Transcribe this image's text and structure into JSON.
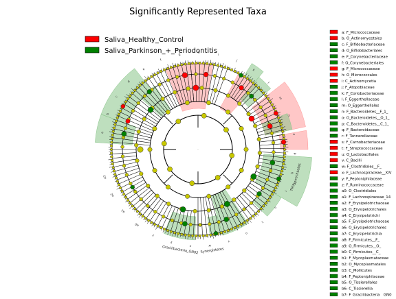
{
  "title": "Significantly Represented Taxa",
  "colors": {
    "healthy": "#ff0000",
    "parkinson": "#008000",
    "node_neutral": "#c8c800",
    "healthy_fill": "#ff9999",
    "parkinson_fill": "#88c488",
    "edge": "#000000"
  },
  "main_legend": [
    {
      "label": "Saliva_Healthy_Control",
      "color": "#ff0000"
    },
    {
      "label": "Saliva_Parkinson_+_Periodontitis",
      "color": "#008000"
    }
  ],
  "taxa_legend": [
    {
      "label": "a: F_Micrococcaceae",
      "color": "#ff0000"
    },
    {
      "label": "b: O_Actinomycetales",
      "color": "#ff0000"
    },
    {
      "label": "c: F_Bifidobacteriaceae",
      "color": "#008000"
    },
    {
      "label": "d: O_Bifidobacteriales",
      "color": "#008000"
    },
    {
      "label": "e: F_Corynebacteriaceae",
      "color": "#008000"
    },
    {
      "label": "f: O_Corynebacteriales",
      "color": "#008000"
    },
    {
      "label": "g: F_Micrococcaceae",
      "color": "#ff0000"
    },
    {
      "label": "h: O_Micrococcales",
      "color": "#ff0000"
    },
    {
      "label": "i: C_Actinomycetia",
      "color": "#ff0000"
    },
    {
      "label": "j: F_Atopobiaceae",
      "color": "#008000"
    },
    {
      "label": "k: F_Coriobacteriaceae",
      "color": "#008000"
    },
    {
      "label": "l: F_Eggerthellaceae",
      "color": "#008000"
    },
    {
      "label": "m: O_Eggerthellales",
      "color": "#008000"
    },
    {
      "label": "n: F_Bacteroidetes__F_1_",
      "color": "#008000"
    },
    {
      "label": "o: O_Bacteroidetes__O_1_",
      "color": "#008000"
    },
    {
      "label": "p: C_Bacteroidetes__C_1_",
      "color": "#008000"
    },
    {
      "label": "q: F_Bacteroidaceae",
      "color": "#008000"
    },
    {
      "label": "r: F_Tannerellaceae",
      "color": "#008000"
    },
    {
      "label": "s: F_Carnobacteriaceae",
      "color": "#ff0000"
    },
    {
      "label": "t: F_Streptococcaceae",
      "color": "#ff0000"
    },
    {
      "label": "u: O_Lactobacillales",
      "color": "#ff0000"
    },
    {
      "label": "v: C_Bacilli",
      "color": "#ff0000"
    },
    {
      "label": "w: F_Clostridiales__F_",
      "color": "#008000"
    },
    {
      "label": "x: F_Lachnospiraceae__XIV",
      "color": "#ff0000"
    },
    {
      "label": "y: F_Peptoniphilaceae",
      "color": "#008000"
    },
    {
      "label": "z: F_Ruminococcaceae",
      "color": "#008000"
    },
    {
      "label": "a0: O_Clostridiales",
      "color": "#008000"
    },
    {
      "label": "a1: F_Lachnospiraceae_14",
      "color": "#008000"
    },
    {
      "label": "a2: F_Erysipelotrichaceae",
      "color": "#008000"
    },
    {
      "label": "a3: O_Erysipelotrichales",
      "color": "#008000"
    },
    {
      "label": "a4: C_Erysipelotrichi",
      "color": "#008000"
    },
    {
      "label": "a5: F_Erysipelotrichaceae",
      "color": "#008000"
    },
    {
      "label": "a6: O_Erysipelotrichales",
      "color": "#008000"
    },
    {
      "label": "a7: C_Erysipelotrichia",
      "color": "#008000"
    },
    {
      "label": "a8: F_Firmicutes__F_",
      "color": "#008000"
    },
    {
      "label": "a9: O_Firmicutes__O_",
      "color": "#008000"
    },
    {
      "label": "b0: C_Firmicutes__C_",
      "color": "#008000"
    },
    {
      "label": "b1: F_Mycoplasmataceae",
      "color": "#008000"
    },
    {
      "label": "b2: O_Mycoplasmatales",
      "color": "#008000"
    },
    {
      "label": "b3: C_Mollicutes",
      "color": "#008000"
    },
    {
      "label": "b4: F_Peptoniphilaceae",
      "color": "#008000"
    },
    {
      "label": "b5: O_Tissierellales",
      "color": "#008000"
    },
    {
      "label": "b6: C_Tissierellia",
      "color": "#008000"
    },
    {
      "label": "b7: F_Gracilibacteria__GN0",
      "color": "#008000"
    }
  ],
  "outer_labels": [
    {
      "text": "Gracilibacteria_GN02",
      "angle": 100
    },
    {
      "text": "Synergistetes",
      "angle": 82
    },
    {
      "text": "Spirochaetes",
      "angle": 14
    },
    {
      "text": "TM7",
      "angle": 22
    }
  ],
  "sectors": [
    {
      "clade": "healthy",
      "from": -112,
      "to": -80,
      "r0": 60,
      "r1": 126
    },
    {
      "clade": "healthy",
      "from": -62,
      "to": -48,
      "r0": 68,
      "r1": 126
    },
    {
      "clade": "healthy",
      "from": -38,
      "to": -12,
      "r0": 100,
      "r1": 160
    },
    {
      "clade": "healthy",
      "from": -10,
      "to": 0,
      "r0": 120,
      "r1": 160
    },
    {
      "clade": "parkinson",
      "from": -160,
      "to": -128,
      "r0": 110,
      "r1": 150
    },
    {
      "clade": "parkinson",
      "from": -176,
      "to": -160,
      "r0": 96,
      "r1": 150
    },
    {
      "clade": "parkinson",
      "from": -138,
      "to": -124,
      "r0": 72,
      "r1": 112
    },
    {
      "clade": "parkinson",
      "from": -50,
      "to": -40,
      "r0": 96,
      "r1": 138
    },
    {
      "clade": "parkinson",
      "from": -22,
      "to": -12,
      "r0": 100,
      "r1": 140
    },
    {
      "clade": "parkinson",
      "from": 4,
      "to": 30,
      "r0": 96,
      "r1": 166
    },
    {
      "clade": "parkinson",
      "from": 30,
      "to": 44,
      "r0": 110,
      "r1": 140
    },
    {
      "clade": "parkinson",
      "from": 56,
      "to": 74,
      "r0": 70,
      "r1": 130
    },
    {
      "clade": "parkinson",
      "from": 74,
      "to": 82,
      "r0": 100,
      "r1": 128
    },
    {
      "clade": "parkinson",
      "from": 92,
      "to": 112,
      "r0": 98,
      "r1": 132
    },
    {
      "clade": "parkinson",
      "from": -58,
      "to": -50,
      "r0": 126,
      "r1": 148
    }
  ]
}
